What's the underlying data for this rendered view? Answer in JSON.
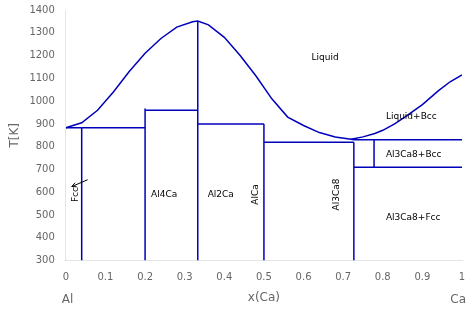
{
  "chart_data": {
    "type": "line",
    "xlabel": "x(Ca)",
    "ylabel": "T[K]",
    "x_end_labels": [
      "Al",
      "Ca"
    ],
    "color": "#0000BB",
    "xlim": [
      0,
      1
    ],
    "ylim": [
      300,
      1400
    ],
    "xticks": [
      0,
      0.1,
      0.2,
      0.3,
      0.4,
      0.5,
      0.6,
      0.7,
      0.8,
      0.9,
      1
    ],
    "yticks": [
      300,
      400,
      500,
      600,
      700,
      800,
      900,
      1000,
      1100,
      1200,
      1300,
      1400
    ],
    "grid": false,
    "series": [
      {
        "x": [
          0.0,
          0.04,
          0.08,
          0.12,
          0.16,
          0.2,
          0.24,
          0.28,
          0.32,
          0.333,
          0.36,
          0.4,
          0.44,
          0.48,
          0.52,
          0.56,
          0.6,
          0.64,
          0.68,
          0.72
        ],
        "values": [
          883,
          905,
          960,
          1040,
          1130,
          1210,
          1275,
          1325,
          1348,
          1352,
          1335,
          1280,
          1200,
          1110,
          1010,
          930,
          893,
          862,
          843,
          833
        ]
      },
      {
        "x": [
          0.72,
          0.75,
          0.78,
          0.8,
          0.83,
          0.86,
          0.9,
          0.94,
          0.97,
          1.0
        ],
        "values": [
          833,
          843,
          858,
          872,
          900,
          935,
          985,
          1045,
          1085,
          1115
        ]
      },
      {
        "x": [
          0.04,
          0.04
        ],
        "values": [
          300,
          883
        ]
      },
      {
        "x": [
          0.0,
          0.04
        ],
        "values": [
          883,
          883
        ]
      },
      {
        "x": [
          0.04,
          0.2
        ],
        "values": [
          883,
          883
        ]
      },
      {
        "x": [
          0.2,
          0.2
        ],
        "values": [
          300,
          968
        ]
      },
      {
        "x": [
          0.2,
          0.333
        ],
        "values": [
          960,
          960
        ]
      },
      {
        "x": [
          0.333,
          0.333
        ],
        "values": [
          300,
          1352
        ]
      },
      {
        "x": [
          0.333,
          0.5
        ],
        "values": [
          900,
          900
        ]
      },
      {
        "x": [
          0.5,
          0.5
        ],
        "values": [
          300,
          900
        ]
      },
      {
        "x": [
          0.5,
          0.727
        ],
        "values": [
          820,
          820
        ]
      },
      {
        "x": [
          0.727,
          0.727
        ],
        "values": [
          300,
          820
        ]
      },
      {
        "x": [
          0.727,
          1.0
        ],
        "values": [
          830,
          830
        ]
      },
      {
        "x": [
          0.727,
          1.0
        ],
        "values": [
          710,
          710
        ]
      },
      {
        "x": [
          0.778,
          0.778
        ],
        "values": [
          710,
          830
        ]
      },
      {
        "x": [
          0.72,
          0.727
        ],
        "values": [
          833,
          830
        ]
      }
    ],
    "annotations": [
      {
        "text": "Fcc",
        "x": 0.012,
        "y": 590
      },
      {
        "text": "Al4Ca",
        "x": 0.215,
        "y": 590
      },
      {
        "text": "Al2Ca",
        "x": 0.358,
        "y": 590
      },
      {
        "text": "AlCa",
        "x": 0.465,
        "y": 590
      },
      {
        "text": "Al3Ca8",
        "x": 0.67,
        "y": 590
      },
      {
        "text": "Liquid",
        "x": 0.62,
        "y": 1190
      },
      {
        "text": "Liquid+Bcc",
        "x": 0.808,
        "y": 930
      },
      {
        "text": "Al3Ca8+Bcc",
        "x": 0.808,
        "y": 763
      },
      {
        "text": "Al3Ca8+Fcc",
        "x": 0.808,
        "y": 490
      }
    ],
    "arrows": [
      {
        "x": 0.055,
        "y": 655,
        "x_to": 0.015,
        "y_to": 625
      }
    ]
  }
}
